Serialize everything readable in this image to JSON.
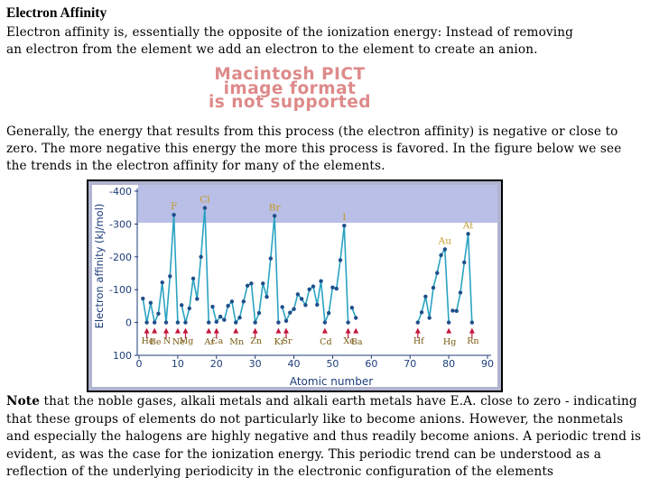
{
  "heading": "Electron Affinity",
  "paragraph1": "Electron affinity is, essentially the opposite of the ionization energy: Instead of removing an electron from the element we add an electron to the element to create an anion.",
  "pict_placeholder": [
    "Macintosh PICT",
    "image format",
    "is not supported"
  ],
  "paragraph2": "Generally, the energy that results from this process (the electron affinity) is negative or close to zero. The more negative this energy the more this process is favored. In the figure below we see the trends in the electron affinity for many of the elements.",
  "note_label": "Note",
  "paragraph3": " that the noble gases, alkali metals and alkali earth metals have E.A. close to zero - indicating that these groups of elements do not particularly like to become anions. However, the nonmetals and especially the halogens are highly negative and thus readily become anions. A periodic trend is evident, as was the case for the ionization energy. This periodic trend can be understood as a reflection of the underlying periodicity in the electronic configuration of the elements",
  "colors": {
    "line": "#2aa3c2",
    "point": "#1f4f8a",
    "plot_bg": "#ffffff",
    "band": "#b9bfe6",
    "frame": "#b0b4cf",
    "arrow": "#c4163c",
    "label": "#c49a24",
    "axis_text": "#1c3d7a"
  },
  "chart_data": {
    "type": "line",
    "title": "",
    "xlabel": "Atomic number",
    "ylabel": "Electron affinity (kJ/mol)",
    "xlim": [
      0,
      90
    ],
    "ylim": [
      100,
      -400
    ],
    "xticks": [
      "0",
      "10",
      "20",
      "30",
      "40",
      "50",
      "60",
      "70",
      "80",
      "90"
    ],
    "yticks": [
      "-400",
      "-300",
      "-200",
      "-100",
      "0",
      "100"
    ],
    "series": [
      {
        "x": [
          1,
          2,
          3,
          4,
          5,
          6,
          7,
          8,
          9,
          10
        ],
        "y": [
          -73,
          0,
          -60,
          0,
          -27,
          -122,
          0,
          -141,
          -328,
          0
        ]
      },
      {
        "x": [
          11,
          12,
          13,
          14,
          15,
          16,
          17,
          18
        ],
        "y": [
          -53,
          0,
          -43,
          -134,
          -72,
          -200,
          -349,
          0
        ]
      },
      {
        "x": [
          19,
          20,
          21,
          22,
          23,
          24,
          25,
          26,
          27,
          28,
          29,
          30,
          31,
          32,
          33,
          34,
          35,
          36
        ],
        "y": [
          -48,
          -2,
          -18,
          -8,
          -51,
          -64,
          0,
          -15,
          -64,
          -112,
          -119,
          0,
          -29,
          -119,
          -78,
          -195,
          -325,
          0
        ]
      },
      {
        "x": [
          37,
          38,
          39,
          40,
          41,
          42,
          43,
          44,
          45,
          46,
          47,
          48,
          49,
          50,
          51,
          52,
          53,
          54
        ],
        "y": [
          -47,
          -5,
          -30,
          -41,
          -86,
          -72,
          -53,
          -101,
          -110,
          -54,
          -126,
          0,
          -29,
          -107,
          -103,
          -190,
          -295,
          0
        ]
      },
      {
        "x": [
          55,
          56
        ],
        "y": [
          -45,
          -14
        ]
      },
      {
        "x": [
          72,
          73,
          74,
          75,
          76,
          77,
          78,
          79,
          80
        ],
        "y": [
          0,
          -31,
          -79,
          -14,
          -106,
          -151,
          -205,
          -223,
          0
        ]
      },
      {
        "x": [
          81,
          82,
          83,
          84,
          85,
          86
        ],
        "y": [
          -36,
          -35,
          -91,
          -183,
          -270,
          0
        ]
      }
    ],
    "peak_labels": [
      {
        "text": "F",
        "x": 9,
        "y": -328
      },
      {
        "text": "Cl",
        "x": 17,
        "y": -349
      },
      {
        "text": "Br",
        "x": 35,
        "y": -325
      },
      {
        "text": "I",
        "x": 53,
        "y": -295
      },
      {
        "text": "Au",
        "x": 79,
        "y": -223
      },
      {
        "text": "At",
        "x": 85,
        "y": -270
      }
    ],
    "low_labels": [
      "He",
      "Be",
      "N",
      "Ne",
      "Mg",
      "Ar",
      "Ca",
      "Mn",
      "Zn",
      "Kr",
      "Sr",
      "Cd",
      "Xe",
      "Ba",
      "Hf",
      "Hg",
      "Rn"
    ]
  }
}
